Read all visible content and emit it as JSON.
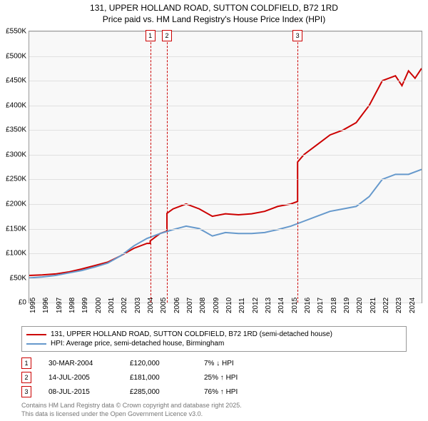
{
  "title_line1": "131, UPPER HOLLAND ROAD, SUTTON COLDFIELD, B72 1RD",
  "title_line2": "Price paid vs. HM Land Registry's House Price Index (HPI)",
  "chart": {
    "type": "line",
    "background_color": "#f8f8f8",
    "grid_color": "#e0e0e0",
    "border_color": "#999999",
    "ylim": [
      0,
      550000
    ],
    "ytick_step": 50000,
    "ytick_labels": [
      "£0",
      "£50K",
      "£100K",
      "£150K",
      "£200K",
      "£250K",
      "£300K",
      "£350K",
      "£400K",
      "£450K",
      "£500K",
      "£550K"
    ],
    "xmin": 1995,
    "xmax": 2025,
    "xtick_step": 1,
    "xtick_labels": [
      "1995",
      "1996",
      "1997",
      "1998",
      "1999",
      "2000",
      "2001",
      "2002",
      "2003",
      "2004",
      "2005",
      "2006",
      "2007",
      "2008",
      "2009",
      "2010",
      "2011",
      "2012",
      "2013",
      "2014",
      "2015",
      "2016",
      "2017",
      "2018",
      "2019",
      "2020",
      "2021",
      "2022",
      "2023",
      "2024"
    ],
    "series": [
      {
        "name": "price_paid",
        "color": "#cc0000",
        "width": 2,
        "points": [
          [
            1995,
            55000
          ],
          [
            1996,
            56000
          ],
          [
            1997,
            58000
          ],
          [
            1998,
            62000
          ],
          [
            1999,
            68000
          ],
          [
            2000,
            75000
          ],
          [
            2001,
            82000
          ],
          [
            2002,
            95000
          ],
          [
            2003,
            110000
          ],
          [
            2004,
            120000
          ],
          [
            2004.25,
            120000
          ],
          [
            2004.25,
            125000
          ],
          [
            2005,
            140000
          ],
          [
            2005.53,
            145000
          ],
          [
            2005.53,
            181000
          ],
          [
            2006,
            190000
          ],
          [
            2007,
            200000
          ],
          [
            2008,
            190000
          ],
          [
            2009,
            175000
          ],
          [
            2010,
            180000
          ],
          [
            2011,
            178000
          ],
          [
            2012,
            180000
          ],
          [
            2013,
            185000
          ],
          [
            2014,
            195000
          ],
          [
            2015,
            200000
          ],
          [
            2015.52,
            205000
          ],
          [
            2015.52,
            285000
          ],
          [
            2016,
            300000
          ],
          [
            2017,
            320000
          ],
          [
            2018,
            340000
          ],
          [
            2019,
            350000
          ],
          [
            2020,
            365000
          ],
          [
            2021,
            400000
          ],
          [
            2022,
            450000
          ],
          [
            2023,
            460000
          ],
          [
            2023.5,
            440000
          ],
          [
            2024,
            470000
          ],
          [
            2024.5,
            455000
          ],
          [
            2025,
            475000
          ]
        ]
      },
      {
        "name": "hpi",
        "color": "#6699cc",
        "width": 2,
        "points": [
          [
            1995,
            50000
          ],
          [
            1996,
            52000
          ],
          [
            1997,
            55000
          ],
          [
            1998,
            60000
          ],
          [
            1999,
            65000
          ],
          [
            2000,
            72000
          ],
          [
            2001,
            80000
          ],
          [
            2002,
            95000
          ],
          [
            2003,
            115000
          ],
          [
            2004,
            130000
          ],
          [
            2005,
            140000
          ],
          [
            2006,
            148000
          ],
          [
            2007,
            155000
          ],
          [
            2008,
            150000
          ],
          [
            2009,
            135000
          ],
          [
            2010,
            142000
          ],
          [
            2011,
            140000
          ],
          [
            2012,
            140000
          ],
          [
            2013,
            142000
          ],
          [
            2014,
            148000
          ],
          [
            2015,
            155000
          ],
          [
            2016,
            165000
          ],
          [
            2017,
            175000
          ],
          [
            2018,
            185000
          ],
          [
            2019,
            190000
          ],
          [
            2020,
            195000
          ],
          [
            2021,
            215000
          ],
          [
            2022,
            250000
          ],
          [
            2023,
            260000
          ],
          [
            2024,
            260000
          ],
          [
            2025,
            270000
          ]
        ]
      }
    ],
    "markers": [
      {
        "id": "1",
        "year": 2004.25
      },
      {
        "id": "2",
        "year": 2005.53
      },
      {
        "id": "3",
        "year": 2015.52
      }
    ]
  },
  "legend": [
    {
      "color": "#cc0000",
      "label": "131, UPPER HOLLAND ROAD, SUTTON COLDFIELD, B72 1RD (semi-detached house)"
    },
    {
      "color": "#6699cc",
      "label": "HPI: Average price, semi-detached house, Birmingham"
    }
  ],
  "transactions": [
    {
      "id": "1",
      "date": "30-MAR-2004",
      "price": "£120,000",
      "hpi": "7% ↓ HPI"
    },
    {
      "id": "2",
      "date": "14-JUL-2005",
      "price": "£181,000",
      "hpi": "25% ↑ HPI"
    },
    {
      "id": "3",
      "date": "08-JUL-2015",
      "price": "£285,000",
      "hpi": "76% ↑ HPI"
    }
  ],
  "footer_line1": "Contains HM Land Registry data © Crown copyright and database right 2025.",
  "footer_line2": "This data is licensed under the Open Government Licence v3.0."
}
